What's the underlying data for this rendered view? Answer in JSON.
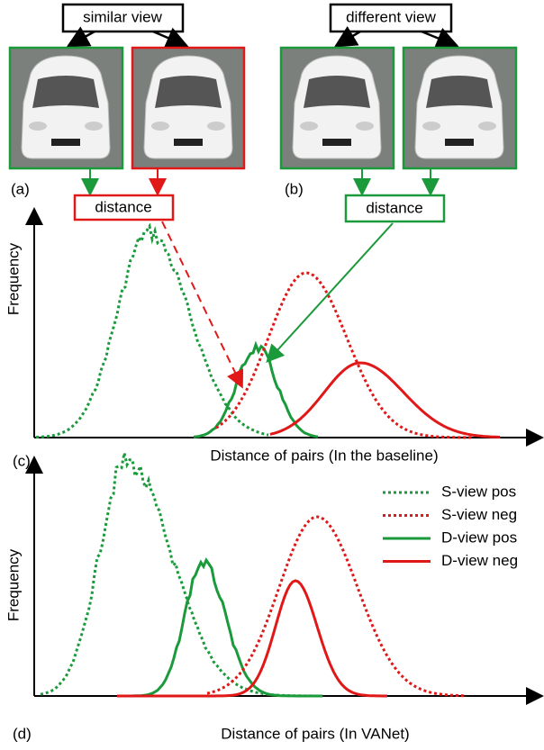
{
  "top": {
    "similar_label": "similar view",
    "different_label": "different view",
    "panel_a": "(a)",
    "panel_b": "(b)",
    "distance_a": "distance",
    "distance_b": "distance"
  },
  "chart_c": {
    "ylabel": "Frequency",
    "xlabel": "Distance of pairs (In the baseline)",
    "panel": "(c)"
  },
  "chart_d": {
    "ylabel": "Frequency",
    "xlabel": "Distance of pairs (In VANet)",
    "panel": "(d)",
    "legend": [
      "S-view pos",
      "S-view neg",
      "D-view pos",
      "D-view neg"
    ]
  }
}
